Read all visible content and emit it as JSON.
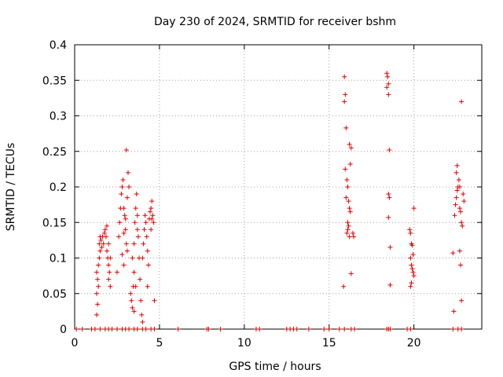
{
  "chart_data": {
    "type": "scatter",
    "title": "Day 230 of 2024, SRMTID for receiver bshm",
    "xlabel": "GPS time / hours",
    "ylabel": "SRMTID / TECUs",
    "xlim": [
      0,
      24
    ],
    "ylim": [
      0,
      0.4
    ],
    "xticks": [
      0,
      5,
      10,
      15,
      20
    ],
    "xtick_labels": [
      "0",
      "5",
      "10",
      "15",
      "20"
    ],
    "yticks": [
      0,
      0.05,
      0.1,
      0.15,
      0.2,
      0.25,
      0.3,
      0.35,
      0.4
    ],
    "ytick_labels": [
      "0",
      "0.05",
      "0.1",
      "0.15",
      "0.2",
      "0.25",
      "0.3",
      "0.35",
      "0.4"
    ],
    "grid": true,
    "marker": "+",
    "color": "#e00000",
    "series": [
      {
        "name": "SRMTID",
        "points": [
          [
            0.1,
            0
          ],
          [
            0.45,
            0
          ],
          [
            1.0,
            0
          ],
          [
            1.2,
            0
          ],
          [
            1.5,
            0
          ],
          [
            1.8,
            0
          ],
          [
            2.0,
            0
          ],
          [
            2.2,
            0
          ],
          [
            2.5,
            0
          ],
          [
            2.8,
            0
          ],
          [
            3.0,
            0
          ],
          [
            3.2,
            0
          ],
          [
            3.5,
            0
          ],
          [
            3.7,
            0
          ],
          [
            4.0,
            0
          ],
          [
            4.2,
            0
          ],
          [
            4.5,
            0
          ],
          [
            4.7,
            0
          ],
          [
            6.1,
            0
          ],
          [
            7.8,
            0
          ],
          [
            7.9,
            0
          ],
          [
            8.6,
            0
          ],
          [
            10.7,
            0
          ],
          [
            10.9,
            0
          ],
          [
            12.5,
            0
          ],
          [
            12.7,
            0
          ],
          [
            12.9,
            0
          ],
          [
            13.1,
            0
          ],
          [
            13.8,
            0
          ],
          [
            14.7,
            0
          ],
          [
            15.0,
            0
          ],
          [
            15.6,
            0
          ],
          [
            15.9,
            0
          ],
          [
            16.3,
            0
          ],
          [
            16.5,
            0
          ],
          [
            18.4,
            0
          ],
          [
            18.5,
            0
          ],
          [
            18.6,
            0
          ],
          [
            19.6,
            0
          ],
          [
            19.8,
            0
          ],
          [
            22.3,
            0
          ],
          [
            22.6,
            0
          ],
          [
            22.8,
            0
          ],
          [
            1.3,
            0.02
          ],
          [
            1.35,
            0.035
          ],
          [
            1.3,
            0.05
          ],
          [
            1.4,
            0.06
          ],
          [
            1.35,
            0.07
          ],
          [
            1.3,
            0.08
          ],
          [
            1.4,
            0.09
          ],
          [
            1.45,
            0.1
          ],
          [
            1.5,
            0.11
          ],
          [
            1.45,
            0.12
          ],
          [
            1.5,
            0.13
          ],
          [
            1.55,
            0.125
          ],
          [
            1.6,
            0.115
          ],
          [
            1.65,
            0.13
          ],
          [
            1.7,
            0.12
          ],
          [
            1.75,
            0.135
          ],
          [
            1.8,
            0.14
          ],
          [
            1.85,
            0.13
          ],
          [
            1.9,
            0.11
          ],
          [
            1.95,
            0.1
          ],
          [
            2.0,
            0.09
          ],
          [
            2.05,
            0.08
          ],
          [
            2.0,
            0.07
          ],
          [
            2.1,
            0.06
          ],
          [
            1.9,
            0.145
          ],
          [
            2.0,
            0.12
          ],
          [
            2.1,
            0.1
          ],
          [
            2.5,
            0.08
          ],
          [
            2.6,
            0.13
          ],
          [
            2.65,
            0.15
          ],
          [
            2.7,
            0.17
          ],
          [
            2.75,
            0.19
          ],
          [
            2.8,
            0.2
          ],
          [
            2.85,
            0.21
          ],
          [
            2.9,
            0.17
          ],
          [
            2.95,
            0.16
          ],
          [
            3.0,
            0.14
          ],
          [
            3.05,
            0.12
          ],
          [
            3.1,
            0.11
          ],
          [
            3.05,
            0.252
          ],
          [
            3.15,
            0.22
          ],
          [
            3.2,
            0.2
          ],
          [
            3.1,
            0.185
          ],
          [
            3.0,
            0.155
          ],
          [
            2.9,
            0.135
          ],
          [
            2.8,
            0.105
          ],
          [
            2.9,
            0.09
          ],
          [
            3.3,
            0.05
          ],
          [
            3.35,
            0.04
          ],
          [
            3.4,
            0.03
          ],
          [
            3.45,
            0.06
          ],
          [
            3.5,
            0.08
          ],
          [
            3.4,
            0.1
          ],
          [
            3.5,
            0.12
          ],
          [
            3.55,
            0.15
          ],
          [
            3.6,
            0.17
          ],
          [
            3.65,
            0.19
          ],
          [
            3.7,
            0.16
          ],
          [
            3.75,
            0.13
          ],
          [
            3.8,
            0.1
          ],
          [
            3.85,
            0.07
          ],
          [
            3.9,
            0.04
          ],
          [
            3.95,
            0.02
          ],
          [
            4.0,
            0.01
          ],
          [
            3.7,
            0.14
          ],
          [
            3.6,
            0.06
          ],
          [
            3.5,
            0.025
          ],
          [
            4.0,
            0.1
          ],
          [
            4.05,
            0.12
          ],
          [
            4.1,
            0.14
          ],
          [
            4.15,
            0.16
          ],
          [
            4.2,
            0.15
          ],
          [
            4.25,
            0.13
          ],
          [
            4.3,
            0.11
          ],
          [
            4.35,
            0.09
          ],
          [
            4.3,
            0.06
          ],
          [
            4.4,
            0.155
          ],
          [
            4.45,
            0.165
          ],
          [
            4.5,
            0.17
          ],
          [
            4.55,
            0.18
          ],
          [
            4.6,
            0.16
          ],
          [
            4.65,
            0.15
          ],
          [
            4.7,
            0.04
          ],
          [
            4.5,
            0.14
          ],
          [
            4.55,
            0.155
          ],
          [
            15.9,
            0.355
          ],
          [
            15.95,
            0.33
          ],
          [
            15.9,
            0.32
          ],
          [
            16.0,
            0.283
          ],
          [
            15.95,
            0.225
          ],
          [
            16.05,
            0.21
          ],
          [
            16.1,
            0.2
          ],
          [
            16.0,
            0.185
          ],
          [
            16.15,
            0.18
          ],
          [
            16.2,
            0.17
          ],
          [
            16.25,
            0.165
          ],
          [
            16.2,
            0.26
          ],
          [
            16.3,
            0.255
          ],
          [
            16.25,
            0.232
          ],
          [
            16.1,
            0.14
          ],
          [
            16.05,
            0.135
          ],
          [
            16.15,
            0.145
          ],
          [
            16.2,
            0.13
          ],
          [
            16.4,
            0.135
          ],
          [
            16.45,
            0.13
          ],
          [
            16.3,
            0.078
          ],
          [
            15.85,
            0.06
          ],
          [
            16.1,
            0.15
          ],
          [
            18.4,
            0.36
          ],
          [
            18.45,
            0.355
          ],
          [
            18.5,
            0.345
          ],
          [
            18.4,
            0.34
          ],
          [
            18.5,
            0.33
          ],
          [
            18.55,
            0.252
          ],
          [
            18.5,
            0.19
          ],
          [
            18.55,
            0.185
          ],
          [
            18.5,
            0.157
          ],
          [
            18.6,
            0.115
          ],
          [
            18.6,
            0.062
          ],
          [
            19.75,
            0.14
          ],
          [
            19.8,
            0.135
          ],
          [
            19.85,
            0.12
          ],
          [
            19.9,
            0.118
          ],
          [
            19.8,
            0.1
          ],
          [
            19.85,
            0.09
          ],
          [
            19.9,
            0.085
          ],
          [
            19.95,
            0.08
          ],
          [
            20.0,
            0.075
          ],
          [
            19.85,
            0.065
          ],
          [
            19.8,
            0.06
          ],
          [
            20.0,
            0.17
          ],
          [
            19.95,
            0.105
          ],
          [
            22.3,
            0.107
          ],
          [
            22.35,
            0.025
          ],
          [
            22.4,
            0.16
          ],
          [
            22.45,
            0.175
          ],
          [
            22.5,
            0.185
          ],
          [
            22.55,
            0.195
          ],
          [
            22.6,
            0.2
          ],
          [
            22.5,
            0.22
          ],
          [
            22.55,
            0.23
          ],
          [
            22.7,
            0.17
          ],
          [
            22.75,
            0.165
          ],
          [
            22.8,
            0.15
          ],
          [
            22.85,
            0.145
          ],
          [
            22.9,
            0.19
          ],
          [
            22.95,
            0.18
          ],
          [
            22.8,
            0.32
          ],
          [
            22.7,
            0.11
          ],
          [
            22.75,
            0.09
          ],
          [
            22.8,
            0.04
          ],
          [
            22.65,
            0.21
          ],
          [
            22.7,
            0.2
          ]
        ]
      }
    ]
  }
}
